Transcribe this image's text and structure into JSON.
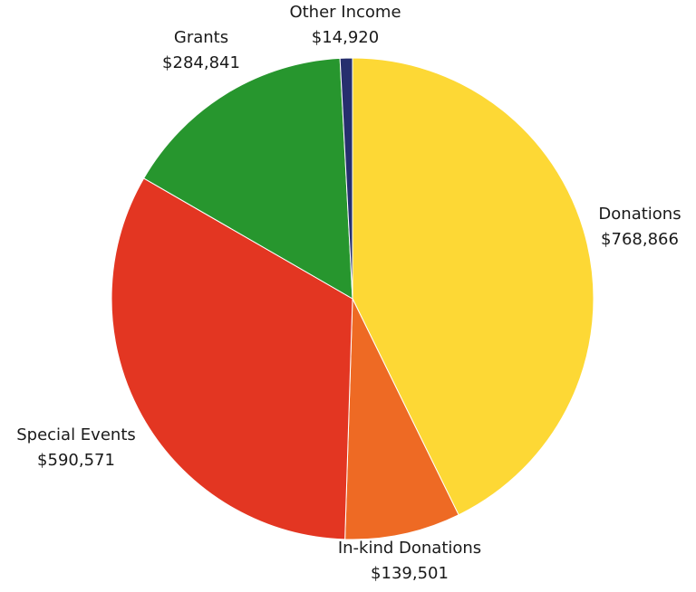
{
  "chart_data": {
    "type": "pie",
    "title": "",
    "slices": [
      {
        "label": "Donations",
        "value": 768866,
        "value_text": "$768,866",
        "color": "#FDD835"
      },
      {
        "label": "In-kind Donations",
        "value": 139501,
        "value_text": "$139,501",
        "color": "#EE6A24"
      },
      {
        "label": "Special Events",
        "value": 590571,
        "value_text": "$590,571",
        "color": "#E33622"
      },
      {
        "label": "Grants",
        "value": 284841,
        "value_text": "$284,841",
        "color": "#27962E"
      },
      {
        "label": "Other Income",
        "value": 14920,
        "value_text": "$14,920",
        "color": "#262F6E"
      }
    ],
    "start_angle": "12 o'clock",
    "direction": "clockwise",
    "legend": "none"
  }
}
